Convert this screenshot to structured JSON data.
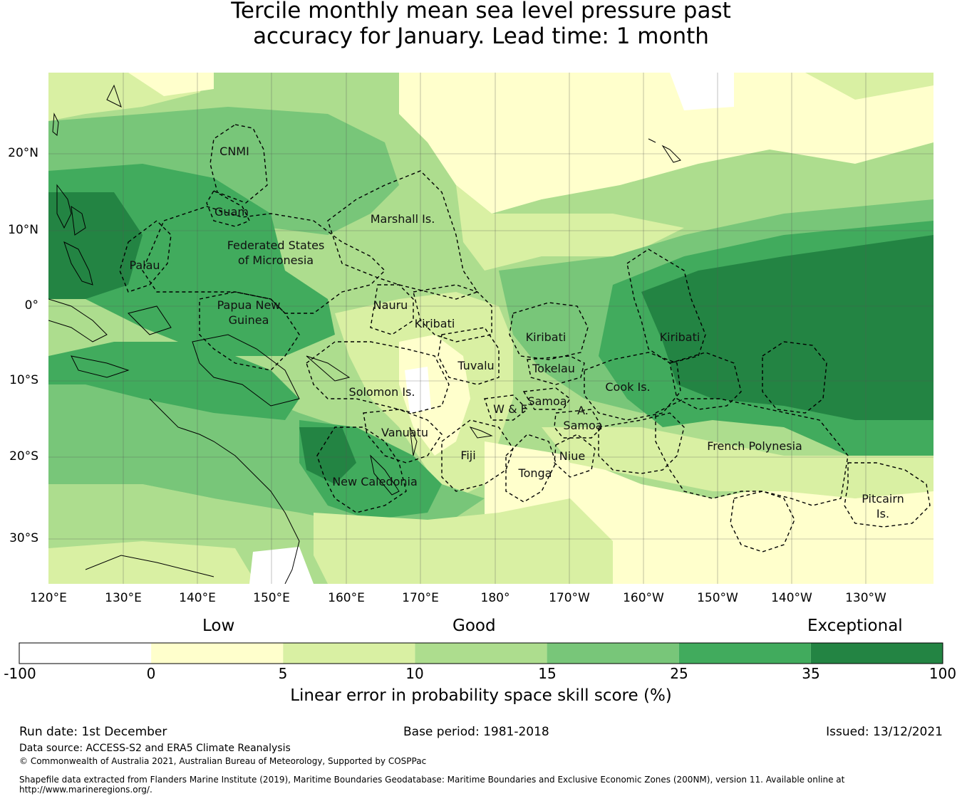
{
  "title_line1": "Tercile monthly mean sea level pressure past",
  "title_line2": "accuracy for January. Lead time: 1 month",
  "map": {
    "lat_labels": [
      "20°N",
      "10°N",
      "0°",
      "10°S",
      "20°S",
      "30°S"
    ],
    "lon_labels": [
      "120°E",
      "130°E",
      "140°E",
      "150°E",
      "160°E",
      "170°E",
      "180°",
      "170°W",
      "160°W",
      "150°W",
      "140°W",
      "130°W"
    ],
    "regions": [
      {
        "label": "CNMI"
      },
      {
        "label": "Guam"
      },
      {
        "label": "Marshall Is."
      },
      {
        "label": "Federated States"
      },
      {
        "label": "of Micronesia"
      },
      {
        "label": "Palau"
      },
      {
        "label": "Papua New"
      },
      {
        "label": "Guinea"
      },
      {
        "label": "Nauru"
      },
      {
        "label": "Kiribati"
      },
      {
        "label": "Kiribati"
      },
      {
        "label": "Kiribati"
      },
      {
        "label": "Tuvalu"
      },
      {
        "label": "Tokelau"
      },
      {
        "label": "Solomon Is."
      },
      {
        "label": "Samoa"
      },
      {
        "label": "W & F"
      },
      {
        "label": "A."
      },
      {
        "label": "Samoa"
      },
      {
        "label": "Cook Is."
      },
      {
        "label": "Vanuatu"
      },
      {
        "label": "Fiji"
      },
      {
        "label": "Niue"
      },
      {
        "label": "Tonga"
      },
      {
        "label": "New Caledonia"
      },
      {
        "label": "French Polynesia"
      },
      {
        "label": "Pitcairn"
      },
      {
        "label": "Is."
      }
    ]
  },
  "colorbar": {
    "categories": [
      "Low",
      "Good",
      "Exceptional"
    ],
    "ticks": [
      "-100",
      "0",
      "5",
      "10",
      "15",
      "25",
      "35",
      "100"
    ],
    "colors": [
      "#ffffff",
      "#ffffcc",
      "#d9f0a3",
      "#addd8e",
      "#78c679",
      "#41ab5d",
      "#238443"
    ],
    "title": "Linear error in probability space skill score (%)"
  },
  "footer": {
    "run_date": "Run date: 1st December",
    "base_period": "Base period: 1981-2018",
    "issued": "Issued: 13/12/2021",
    "data_source": "Data source: ACCESS-S2 and ERA5 Climate Reanalysis",
    "copyright": "© Commonwealth of Australia 2021, Australian Bureau of Meteorology, Supported by COSPPac",
    "shapefile_line1": "Shapefile data extracted from Flanders Marine Institute (2019), Maritime Boundaries Geodatabase: Maritime Boundaries and Exclusive Economic Zones (200NM), version 11. Available online at",
    "shapefile_line2": "http://www.marineregions.org/."
  }
}
